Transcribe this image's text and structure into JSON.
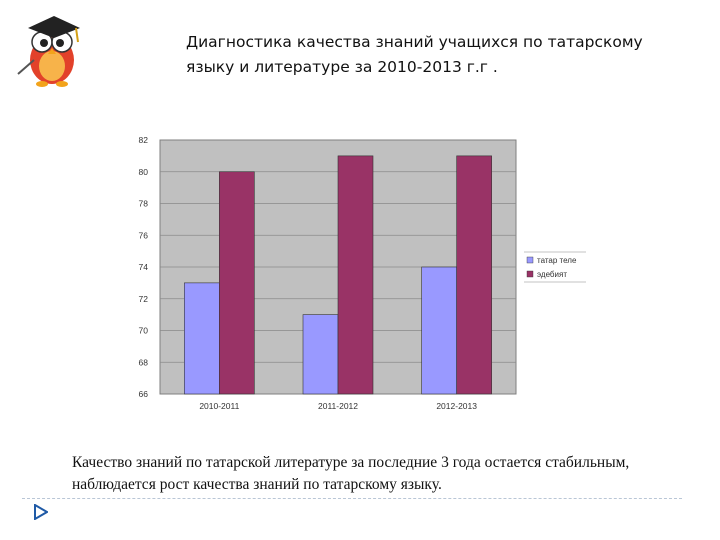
{
  "slide": {
    "title": "Диагностика качества знаний учащихся по татарскому языку и литературе за 2010-2013 г.г .",
    "caption": "Качество знаний по татарской литературе за последние 3 года остается стабильным, наблюдается рост качества знаний по татарскому языку."
  },
  "chart_data": {
    "type": "bar",
    "categories": [
      "2010-2011",
      "2011-2012",
      "2012-2013"
    ],
    "series": [
      {
        "name": "татар теле",
        "values": [
          73,
          71,
          74
        ],
        "color": "#9999ff"
      },
      {
        "name": "эдебият",
        "values": [
          80,
          81,
          81
        ],
        "color": "#993366"
      }
    ],
    "y_ticks": [
      "66",
      "68",
      "70",
      "72",
      "74",
      "76",
      "78",
      "80",
      "82"
    ],
    "ylim": [
      66,
      82
    ],
    "grid": true,
    "plot_background": "#c0c0c0",
    "legend_position": "right"
  },
  "colors": {
    "divider": "#b9c6d6",
    "bullet": "#1f5aa6"
  },
  "icons": {
    "logo": "owl-graduate-icon",
    "bullet": "arrow-bullet-icon"
  }
}
